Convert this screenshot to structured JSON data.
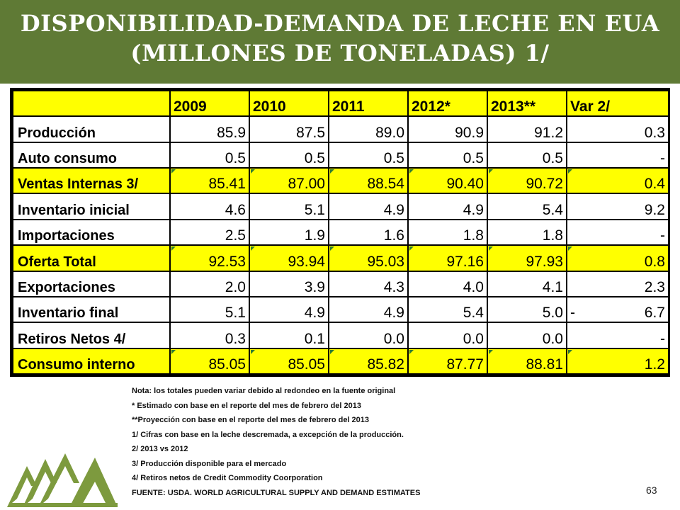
{
  "title_line1": "DISPONIBILIDAD-DEMANDA DE LECHE EN EUA",
  "title_line2": "(MILLONES DE TONELADAS) 1/",
  "table": {
    "headers": [
      "",
      "2009",
      "2010",
      "2011",
      "2012*",
      "2013**",
      "Var 2/"
    ],
    "rows": [
      {
        "label": "Producción",
        "values": [
          "85.9",
          "87.5",
          "89.0",
          "90.9",
          "91.2",
          "0.3"
        ],
        "highlight": false
      },
      {
        "label": "Auto consumo",
        "values": [
          "0.5",
          "0.5",
          "0.5",
          "0.5",
          "0.5",
          "-"
        ],
        "highlight": false
      },
      {
        "label": "Ventas Internas 3/",
        "values": [
          "85.41",
          "87.00",
          "88.54",
          "90.40",
          "90.72",
          "0.4"
        ],
        "highlight": true
      },
      {
        "label": "Inventario inicial",
        "values": [
          "4.6",
          "5.1",
          "4.9",
          "4.9",
          "5.4",
          "9.2"
        ],
        "highlight": false
      },
      {
        "label": "Importaciones",
        "values": [
          "2.5",
          "1.9",
          "1.6",
          "1.8",
          "1.8",
          "-"
        ],
        "highlight": false
      },
      {
        "label": "Oferta Total",
        "values": [
          "92.53",
          "93.94",
          "95.03",
          "97.16",
          "97.93",
          "0.8"
        ],
        "highlight": true
      },
      {
        "label": "Exportaciones",
        "values": [
          "2.0",
          "3.9",
          "4.3",
          "4.0",
          "4.1",
          "2.3"
        ],
        "highlight": false
      },
      {
        "label": "Inventario final",
        "values": [
          "5.1",
          "4.9",
          "4.9",
          "5.4",
          "5.0",
          "6.7"
        ],
        "prefix": "-",
        "highlight": false
      },
      {
        "label": "Retiros Netos 4/",
        "values": [
          "0.3",
          "0.1",
          "0.0",
          "0.0",
          "0.0",
          "-"
        ],
        "highlight": false
      },
      {
        "label": "Consumo interno",
        "values": [
          "85.05",
          "85.05",
          "85.82",
          "87.77",
          "88.81",
          "1.2"
        ],
        "highlight": true
      }
    ]
  },
  "notes": [
    "Nota: los totales pueden variar debido al redondeo en la fuente original",
    "* Estimado con base en el reporte del mes de febrero del 2013",
    "**Proyección con base en el reporte del mes de febrero del 2013",
    "1/ Cifras con base en la leche descremada, a excepción de la producción.",
    "2/ 2013 vs 2012",
    "3/ Producción disponible para el mercado",
    "4/ Retiros netos de Credit Commodity Coorporation",
    "FUENTE: USDA. WORLD AGRICULTURAL SUPPLY AND DEMAND ESTIMATES"
  ],
  "page_number": "63",
  "colors": {
    "banner": "#5f7a35",
    "highlight": "#ffff00",
    "logo": "#7d9a3e"
  },
  "logo_icon": "mountains-logo-icon"
}
